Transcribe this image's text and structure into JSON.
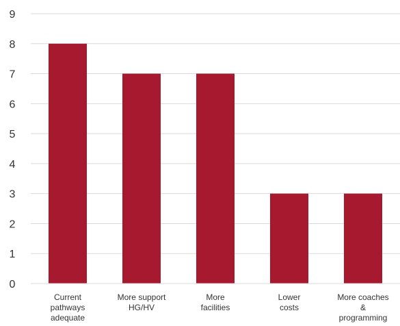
{
  "chart_data": {
    "type": "bar",
    "title": "",
    "xlabel": "",
    "ylabel": "",
    "ylim": [
      0,
      9
    ],
    "y_ticks": [
      "0",
      "1",
      "2",
      "3",
      "4",
      "5",
      "6",
      "7",
      "8",
      "9"
    ],
    "grid": "horizontal",
    "legend": "none",
    "bar_color": "#a6192e",
    "categories": [
      "Current pathways adequate",
      "More support HG/HV",
      "More facilities",
      "Lower costs",
      "More coaches & programming"
    ],
    "category_lines": [
      [
        "Current",
        "pathways",
        "adequate"
      ],
      [
        "More support",
        "HG/HV"
      ],
      [
        "More",
        "facilities"
      ],
      [
        "Lower",
        "costs"
      ],
      [
        "More coaches",
        "&",
        "programming"
      ]
    ],
    "values": [
      8,
      7,
      7,
      3,
      3
    ]
  }
}
